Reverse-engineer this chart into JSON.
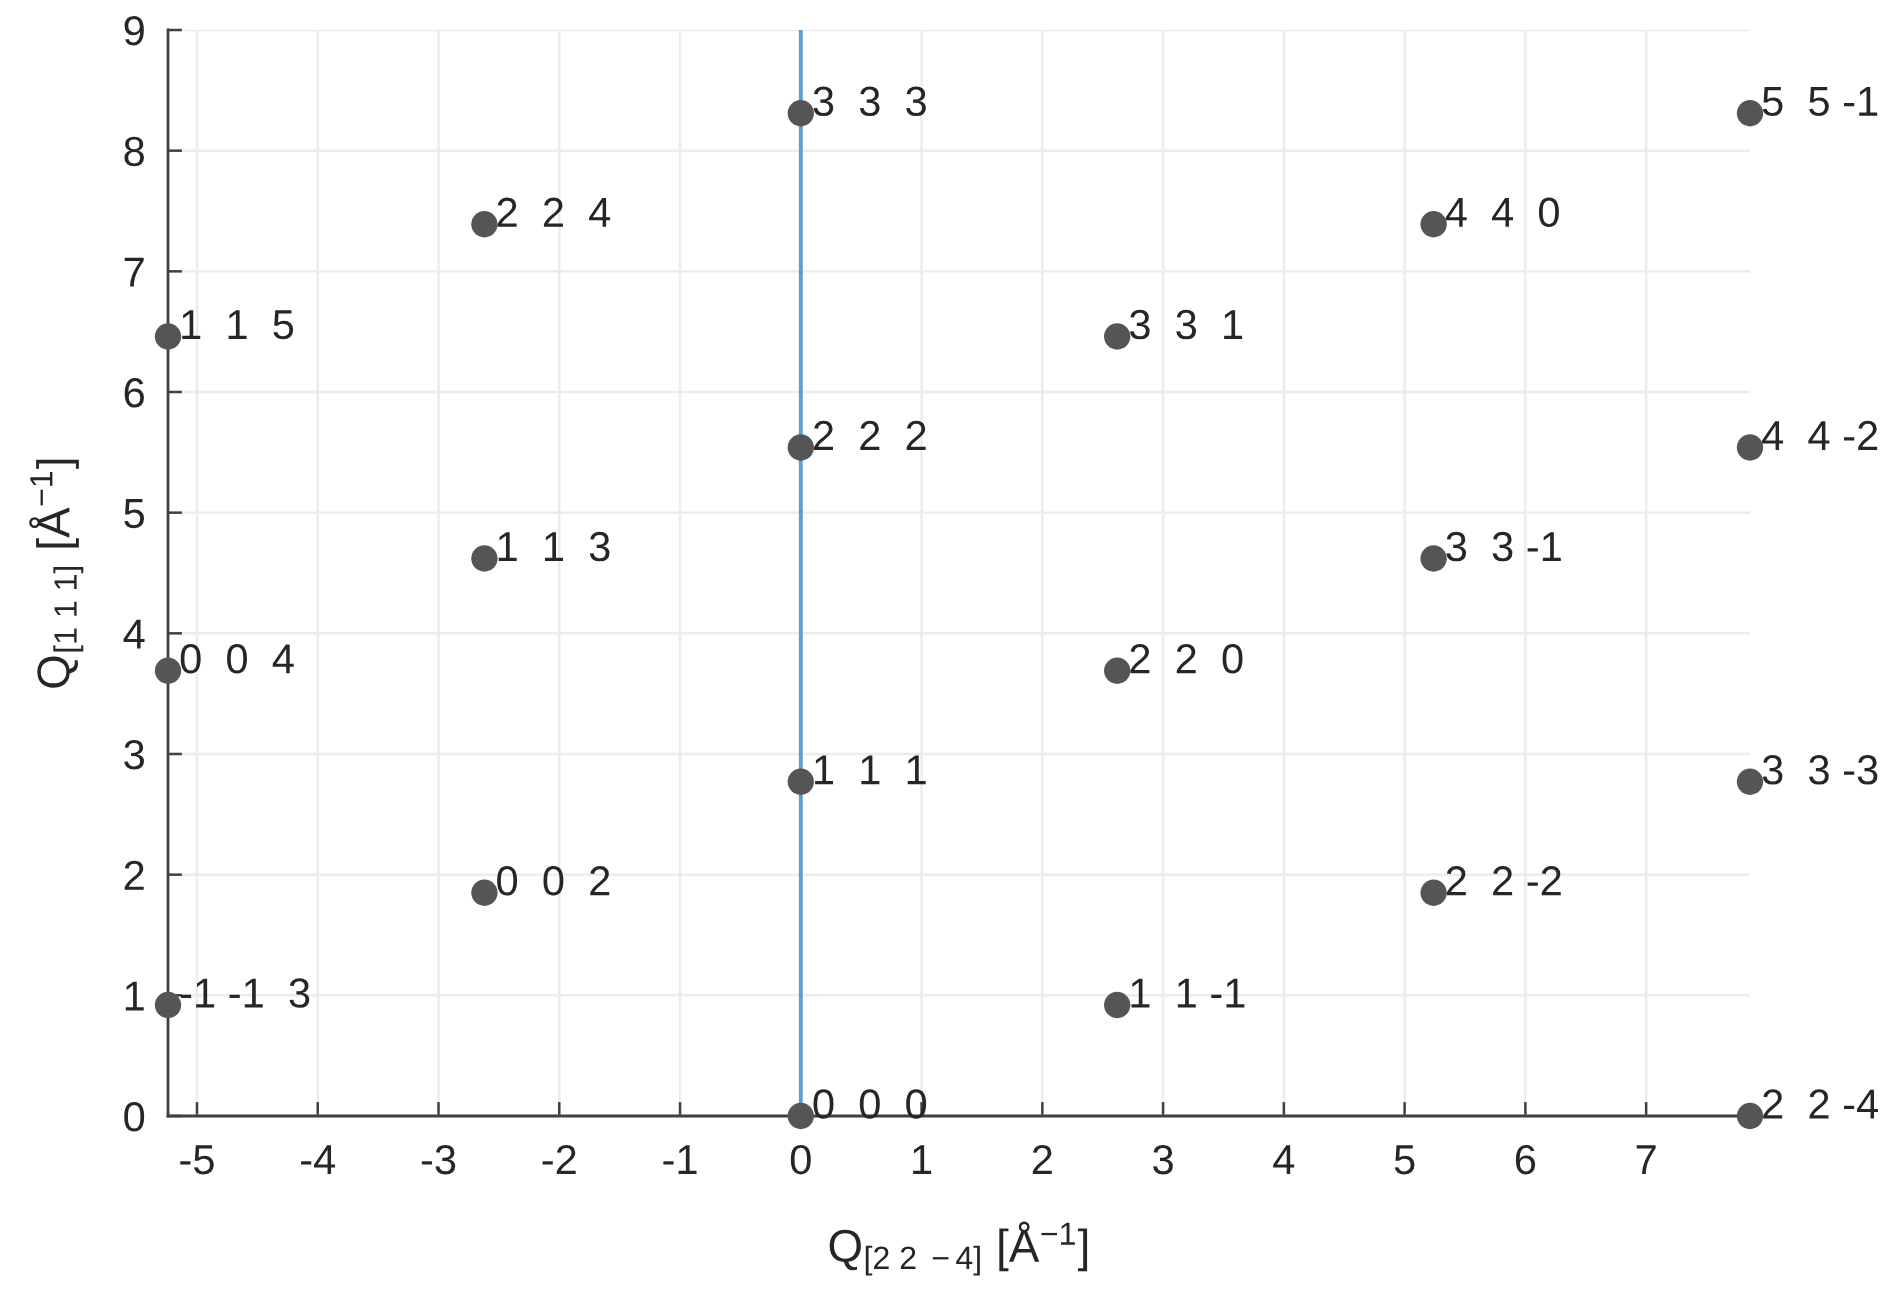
{
  "chart_data": {
    "type": "scatter",
    "xlabel": "Q$_{[2 2 −4]}$ [Å$^{−1}$]",
    "ylabel": "Q$_{[1 1 1]}$ [Å$^{−1}$]",
    "x": [
      -5.24,
      -5.24,
      -5.24,
      -2.62,
      -2.62,
      -2.62,
      0,
      0,
      0,
      0,
      2.62,
      2.62,
      2.62,
      5.24,
      5.24,
      5.24,
      7.86,
      7.86,
      7.86,
      7.86
    ],
    "series": [
      {
        "color": "#555555",
        "values": [
          0.92,
          3.69,
          6.46,
          1.85,
          4.62,
          7.39,
          0,
          2.77,
          5.54,
          8.31,
          0.92,
          3.69,
          6.46,
          1.85,
          4.62,
          7.39,
          0,
          2.77,
          5.54,
          8.31
        ]
      }
    ],
    "marker": "circle",
    "annotations": [
      {
        "text": "-1 -1  3",
        "x": -5.24,
        "y": 0.92
      },
      {
        "text": "0  0  4",
        "x": -5.24,
        "y": 3.69
      },
      {
        "text": "1  1  5",
        "x": -5.24,
        "y": 6.46
      },
      {
        "text": "0  0  2",
        "x": -2.62,
        "y": 1.85
      },
      {
        "text": "1  1  3",
        "x": -2.62,
        "y": 4.62
      },
      {
        "text": "2  2  4",
        "x": -2.62,
        "y": 7.39
      },
      {
        "text": "0  0  0",
        "x": 0,
        "y": 0
      },
      {
        "text": "1  1  1",
        "x": 0,
        "y": 2.77
      },
      {
        "text": "2  2  2",
        "x": 0,
        "y": 5.54
      },
      {
        "text": "3  3  3",
        "x": 0,
        "y": 8.31
      },
      {
        "text": "1  1 -1",
        "x": 2.62,
        "y": 0.92
      },
      {
        "text": "2  2  0",
        "x": 2.62,
        "y": 3.69
      },
      {
        "text": "3  3  1",
        "x": 2.62,
        "y": 6.46
      },
      {
        "text": "2  2 -2",
        "x": 5.24,
        "y": 1.85
      },
      {
        "text": "3  3 -1",
        "x": 5.24,
        "y": 4.62
      },
      {
        "text": "4  4  0",
        "x": 5.24,
        "y": 7.39
      },
      {
        "text": "2  2 -4",
        "x": 7.86,
        "y": 0
      },
      {
        "text": "3  3 -3",
        "x": 7.86,
        "y": 2.77
      },
      {
        "text": "4  4 -2",
        "x": 7.86,
        "y": 5.54
      },
      {
        "text": "5  5 -1",
        "x": 7.86,
        "y": 8.31
      }
    ],
    "ref_lines": [
      {
        "axis": "x",
        "value": 0,
        "color": "#5a9fd0"
      }
    ],
    "xlim": [
      -5.24,
      7.86
    ],
    "ylim": [
      0,
      9
    ],
    "xticks": [
      -5,
      -4,
      -3,
      -2,
      -1,
      0,
      1,
      2,
      3,
      4,
      5,
      6,
      7
    ],
    "yticks": [
      0,
      1,
      2,
      3,
      4,
      5,
      6,
      7,
      8,
      9
    ],
    "grid": true
  }
}
